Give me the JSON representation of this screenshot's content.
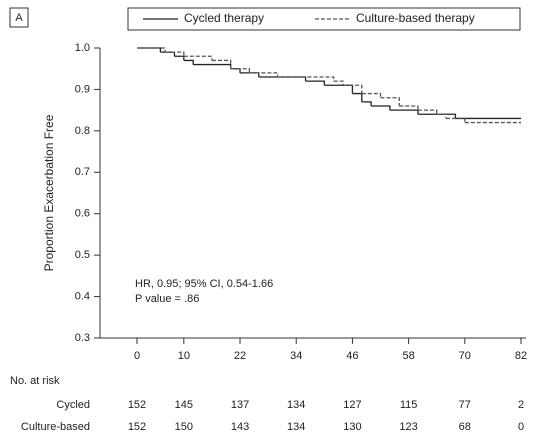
{
  "chart_data": {
    "type": "step",
    "panel_label": "A",
    "ylabel": "Proportion Exacerbation Free",
    "xlim": [
      0,
      82
    ],
    "xticks": [
      0,
      10,
      22,
      34,
      46,
      58,
      70,
      82
    ],
    "ylim": [
      0.3,
      1.0
    ],
    "yticks": [
      {
        "value": 0.3,
        "label": "0.3"
      },
      {
        "value": 0.4,
        "label": "0.4"
      },
      {
        "value": 0.5,
        "label": "0.5"
      },
      {
        "value": 0.6,
        "label": "0.6"
      },
      {
        "value": 0.7,
        "label": "0.7"
      },
      {
        "value": 0.8,
        "label": "0.8"
      },
      {
        "value": 0.9,
        "label": "0.9"
      },
      {
        "value": 1.0,
        "label": "1.0"
      }
    ],
    "annotations": [
      "HR, 0.95; 95% CI, 0.54-1.66",
      "P value = .86"
    ],
    "series": [
      {
        "name": "Cycled therapy",
        "color": "#222222",
        "dash": "solid",
        "x": [
          0,
          5,
          8,
          10,
          12,
          20,
          22,
          26,
          36,
          40,
          46,
          48,
          50,
          54,
          60,
          68,
          82
        ],
        "values": [
          1.0,
          0.99,
          0.98,
          0.97,
          0.96,
          0.95,
          0.94,
          0.93,
          0.92,
          0.91,
          0.89,
          0.87,
          0.86,
          0.85,
          0.84,
          0.83,
          0.83
        ]
      },
      {
        "name": "Culture-based therapy",
        "color": "#555555",
        "dash": "dashed",
        "x": [
          0,
          6,
          10,
          16,
          20,
          24,
          30,
          42,
          44,
          48,
          52,
          56,
          60,
          64,
          66,
          70,
          82
        ],
        "values": [
          1.0,
          0.99,
          0.98,
          0.97,
          0.95,
          0.94,
          0.93,
          0.92,
          0.91,
          0.89,
          0.88,
          0.86,
          0.85,
          0.84,
          0.83,
          0.82,
          0.82
        ]
      }
    ],
    "risk_table": {
      "title": "No. at risk",
      "rows": [
        {
          "name": "Cycled",
          "values": [
            152,
            145,
            137,
            134,
            127,
            115,
            77,
            2
          ]
        },
        {
          "name": "Culture-based",
          "values": [
            152,
            150,
            143,
            134,
            130,
            123,
            68,
            0
          ]
        }
      ]
    }
  }
}
